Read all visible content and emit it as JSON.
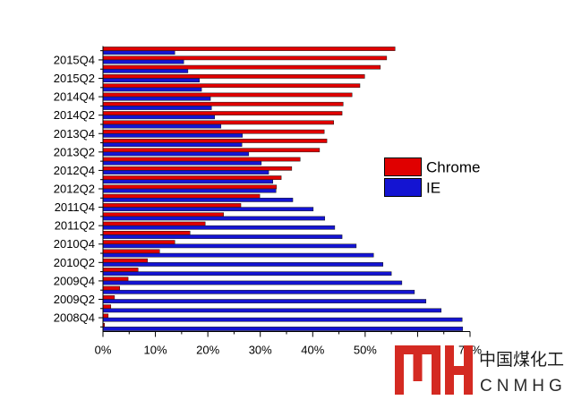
{
  "chart_data": {
    "type": "bar",
    "orientation": "horizontal",
    "xlim": [
      0,
      70
    ],
    "x_tick_labels": [
      "0%",
      "10%",
      "20%",
      "30%",
      "40%",
      "50%",
      "60%",
      "70%"
    ],
    "categories": [
      "",
      "2008Q4",
      "",
      "2009Q2",
      "",
      "2009Q4",
      "",
      "2010Q2",
      "",
      "2010Q4",
      "",
      "2011Q2",
      "",
      "2011Q4",
      "",
      "2012Q2",
      "",
      "2012Q4",
      "",
      "2013Q2",
      "",
      "2013Q4",
      "",
      "2014Q2",
      "",
      "2014Q4",
      "",
      "2015Q2",
      "",
      "2015Q4",
      ""
    ],
    "series": [
      {
        "name": "Chrome",
        "color": "#E00000",
        "values": [
          0.3,
          1.0,
          1.5,
          2.2,
          3.2,
          4.8,
          6.7,
          8.5,
          10.8,
          13.7,
          16.6,
          19.5,
          23.0,
          26.3,
          29.9,
          33.1,
          34.0,
          36.0,
          37.6,
          41.3,
          42.7,
          42.2,
          44.0,
          45.6,
          45.8,
          47.5,
          49.0,
          49.9,
          52.9,
          54.1,
          55.7
        ]
      },
      {
        "name": "IE",
        "color": "#1414D2",
        "values": [
          68.6,
          68.5,
          64.5,
          61.6,
          59.4,
          57.0,
          55.0,
          53.4,
          51.6,
          48.3,
          45.6,
          44.2,
          42.3,
          40.1,
          36.2,
          33.0,
          32.4,
          31.6,
          30.2,
          27.8,
          26.5,
          26.6,
          22.5,
          21.3,
          20.7,
          20.5,
          18.8,
          18.4,
          16.2,
          15.4,
          13.7
        ]
      }
    ],
    "grid": false,
    "legend": "right"
  },
  "watermark": {
    "cn_text": "中国煤化工",
    "en_text": "CNMHG",
    "color": "#D42A22"
  }
}
